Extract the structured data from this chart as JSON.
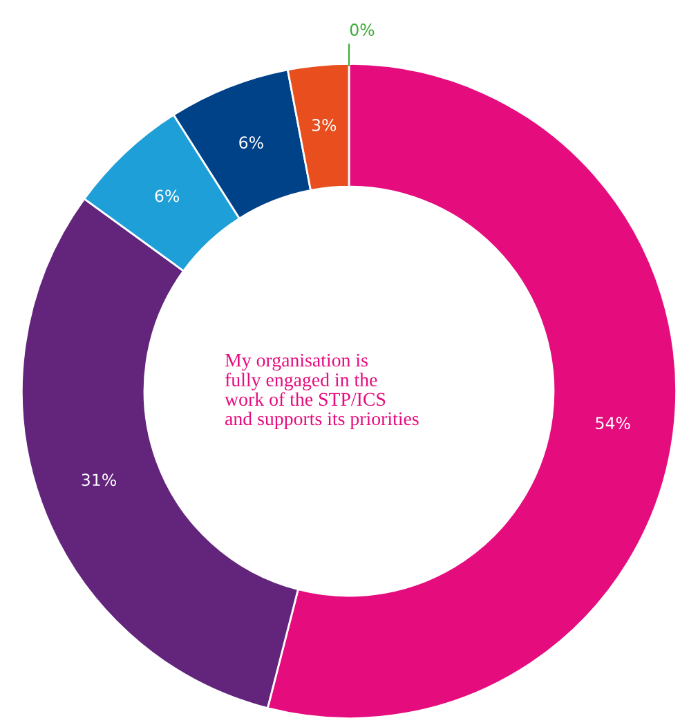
{
  "chart_data": {
    "type": "donut",
    "title": "My organisation is\nfully engaged in the\nwork of the STP/ICS\nand supports its priorities",
    "categories": [
      null,
      null,
      null,
      null,
      null,
      null
    ],
    "values": [
      54,
      31,
      6,
      6,
      3,
      0
    ],
    "colors": [
      "#e50c7e",
      "#63247c",
      "#1e9fd8",
      "#004288",
      "#e84e1e",
      "#3aaa35"
    ],
    "value_labels": [
      "54%",
      "31%",
      "6%",
      "6%",
      "3%",
      "0%"
    ],
    "legend": false
  }
}
